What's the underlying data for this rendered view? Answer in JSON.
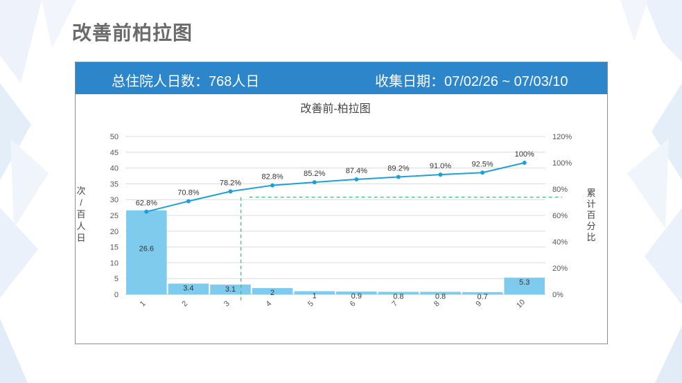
{
  "slide": {
    "title": "改善前柏拉图"
  },
  "header": {
    "total_label": "总住院人日数：",
    "total_value": "768人日",
    "period_label": "收集日期：",
    "period_value": "07/02/26 ~ 07/03/10"
  },
  "colors": {
    "header_bg": "#2c86c9",
    "bar": "#7fcbed",
    "line": "#1f9fd6",
    "threshold": "#3cb878"
  },
  "chart_data": {
    "type": "bar",
    "title": "改善前-柏拉图",
    "categories": [
      "1",
      "2",
      "3",
      "4",
      "5",
      "6",
      "7",
      "8",
      "9",
      "10"
    ],
    "ylabel": "次/百人日",
    "y2label": "累计百分比",
    "ylim": [
      0,
      50
    ],
    "yticks": [
      "0",
      "5",
      "10",
      "15",
      "20",
      "25",
      "30",
      "35",
      "40",
      "45",
      "50"
    ],
    "y2lim": [
      0,
      1.2
    ],
    "y2ticks": [
      "0%",
      "20%",
      "40%",
      "60%",
      "80%",
      "100%",
      "120%"
    ],
    "series": [
      {
        "type": "bar",
        "values": [
          26.6,
          3.4,
          3.1,
          2,
          1,
          0.9,
          0.8,
          0.8,
          0.7,
          5.3
        ],
        "labels": [
          "26.6",
          "3.4",
          "3.1",
          "2",
          "1",
          "0.9",
          "0.8",
          "0.8",
          "0.7",
          "5.3"
        ]
      },
      {
        "type": "line",
        "axis": "secondary",
        "values": [
          0.628,
          0.708,
          0.782,
          0.828,
          0.852,
          0.874,
          0.892,
          0.91,
          0.925,
          1.0
        ],
        "labels": [
          "62.8%",
          "70.8%",
          "78.2%",
          "82.8%",
          "85.2%",
          "87.4%",
          "89.2%",
          "91.0%",
          "92.5%",
          "100%"
        ]
      }
    ],
    "threshold_y2": 0.738,
    "threshold_x_category": 3,
    "grid": true,
    "legend": "none"
  }
}
